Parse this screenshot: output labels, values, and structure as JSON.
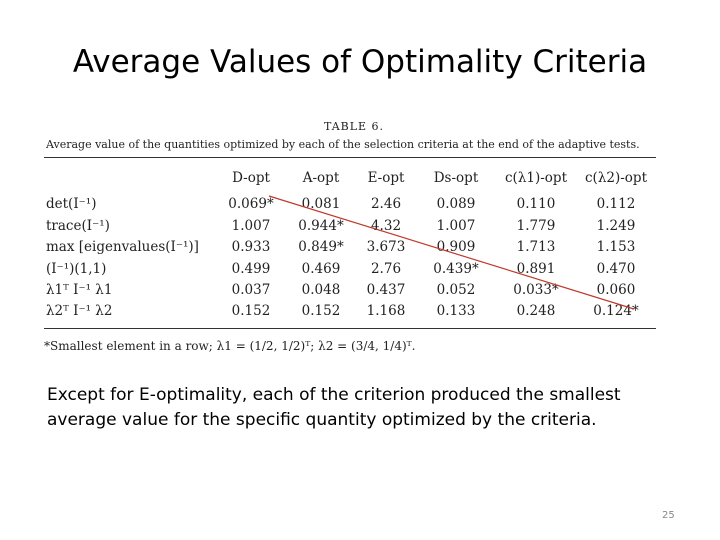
{
  "slide": {
    "title": "Average Values of Optimality Criteria",
    "body": "Except for E-optimality, each of the criterion produced the smallest average value for the specific quantity optimized by the criteria.",
    "page_number": "25"
  },
  "table": {
    "caption_title": "TABLE 6.",
    "caption_text": "Average value of the quantities optimized by each of the selection criteria at the end of the adaptive tests.",
    "columns": [
      "D-opt",
      "A-opt",
      "E-opt",
      "Ds-opt",
      "c(λ1)-opt",
      "c(λ2)-opt"
    ],
    "rows": [
      {
        "label": "det(I⁻¹)",
        "values": [
          "0.069*",
          "0.081",
          "2.46",
          "0.089",
          "0.110",
          "0.112"
        ]
      },
      {
        "label": "trace(I⁻¹)",
        "values": [
          "1.007",
          "0.944*",
          "4.32",
          "1.007",
          "1.779",
          "1.249"
        ]
      },
      {
        "label": "max [eigenvalues(I⁻¹)]",
        "values": [
          "0.933",
          "0.849*",
          "3.673",
          "0.909",
          "1.713",
          "1.153"
        ]
      },
      {
        "label": "(I⁻¹)(1,1)",
        "values": [
          "0.499",
          "0.469",
          "2.76",
          "0.439*",
          "0.891",
          "0.470"
        ]
      },
      {
        "label": "λ1ᵀ I⁻¹ λ1",
        "values": [
          "0.037",
          "0.048",
          "0.437",
          "0.052",
          "0.033*",
          "0.060"
        ]
      },
      {
        "label": "λ2ᵀ I⁻¹ λ2",
        "values": [
          "0.152",
          "0.152",
          "1.168",
          "0.133",
          "0.248",
          "0.124*"
        ]
      }
    ],
    "footnote": "*Smallest element in a row; λ1 = (1/2, 1/2)ᵀ; λ2 = (3/4, 1/4)ᵀ."
  },
  "colors": {
    "annotation_line": "#c0392b"
  }
}
